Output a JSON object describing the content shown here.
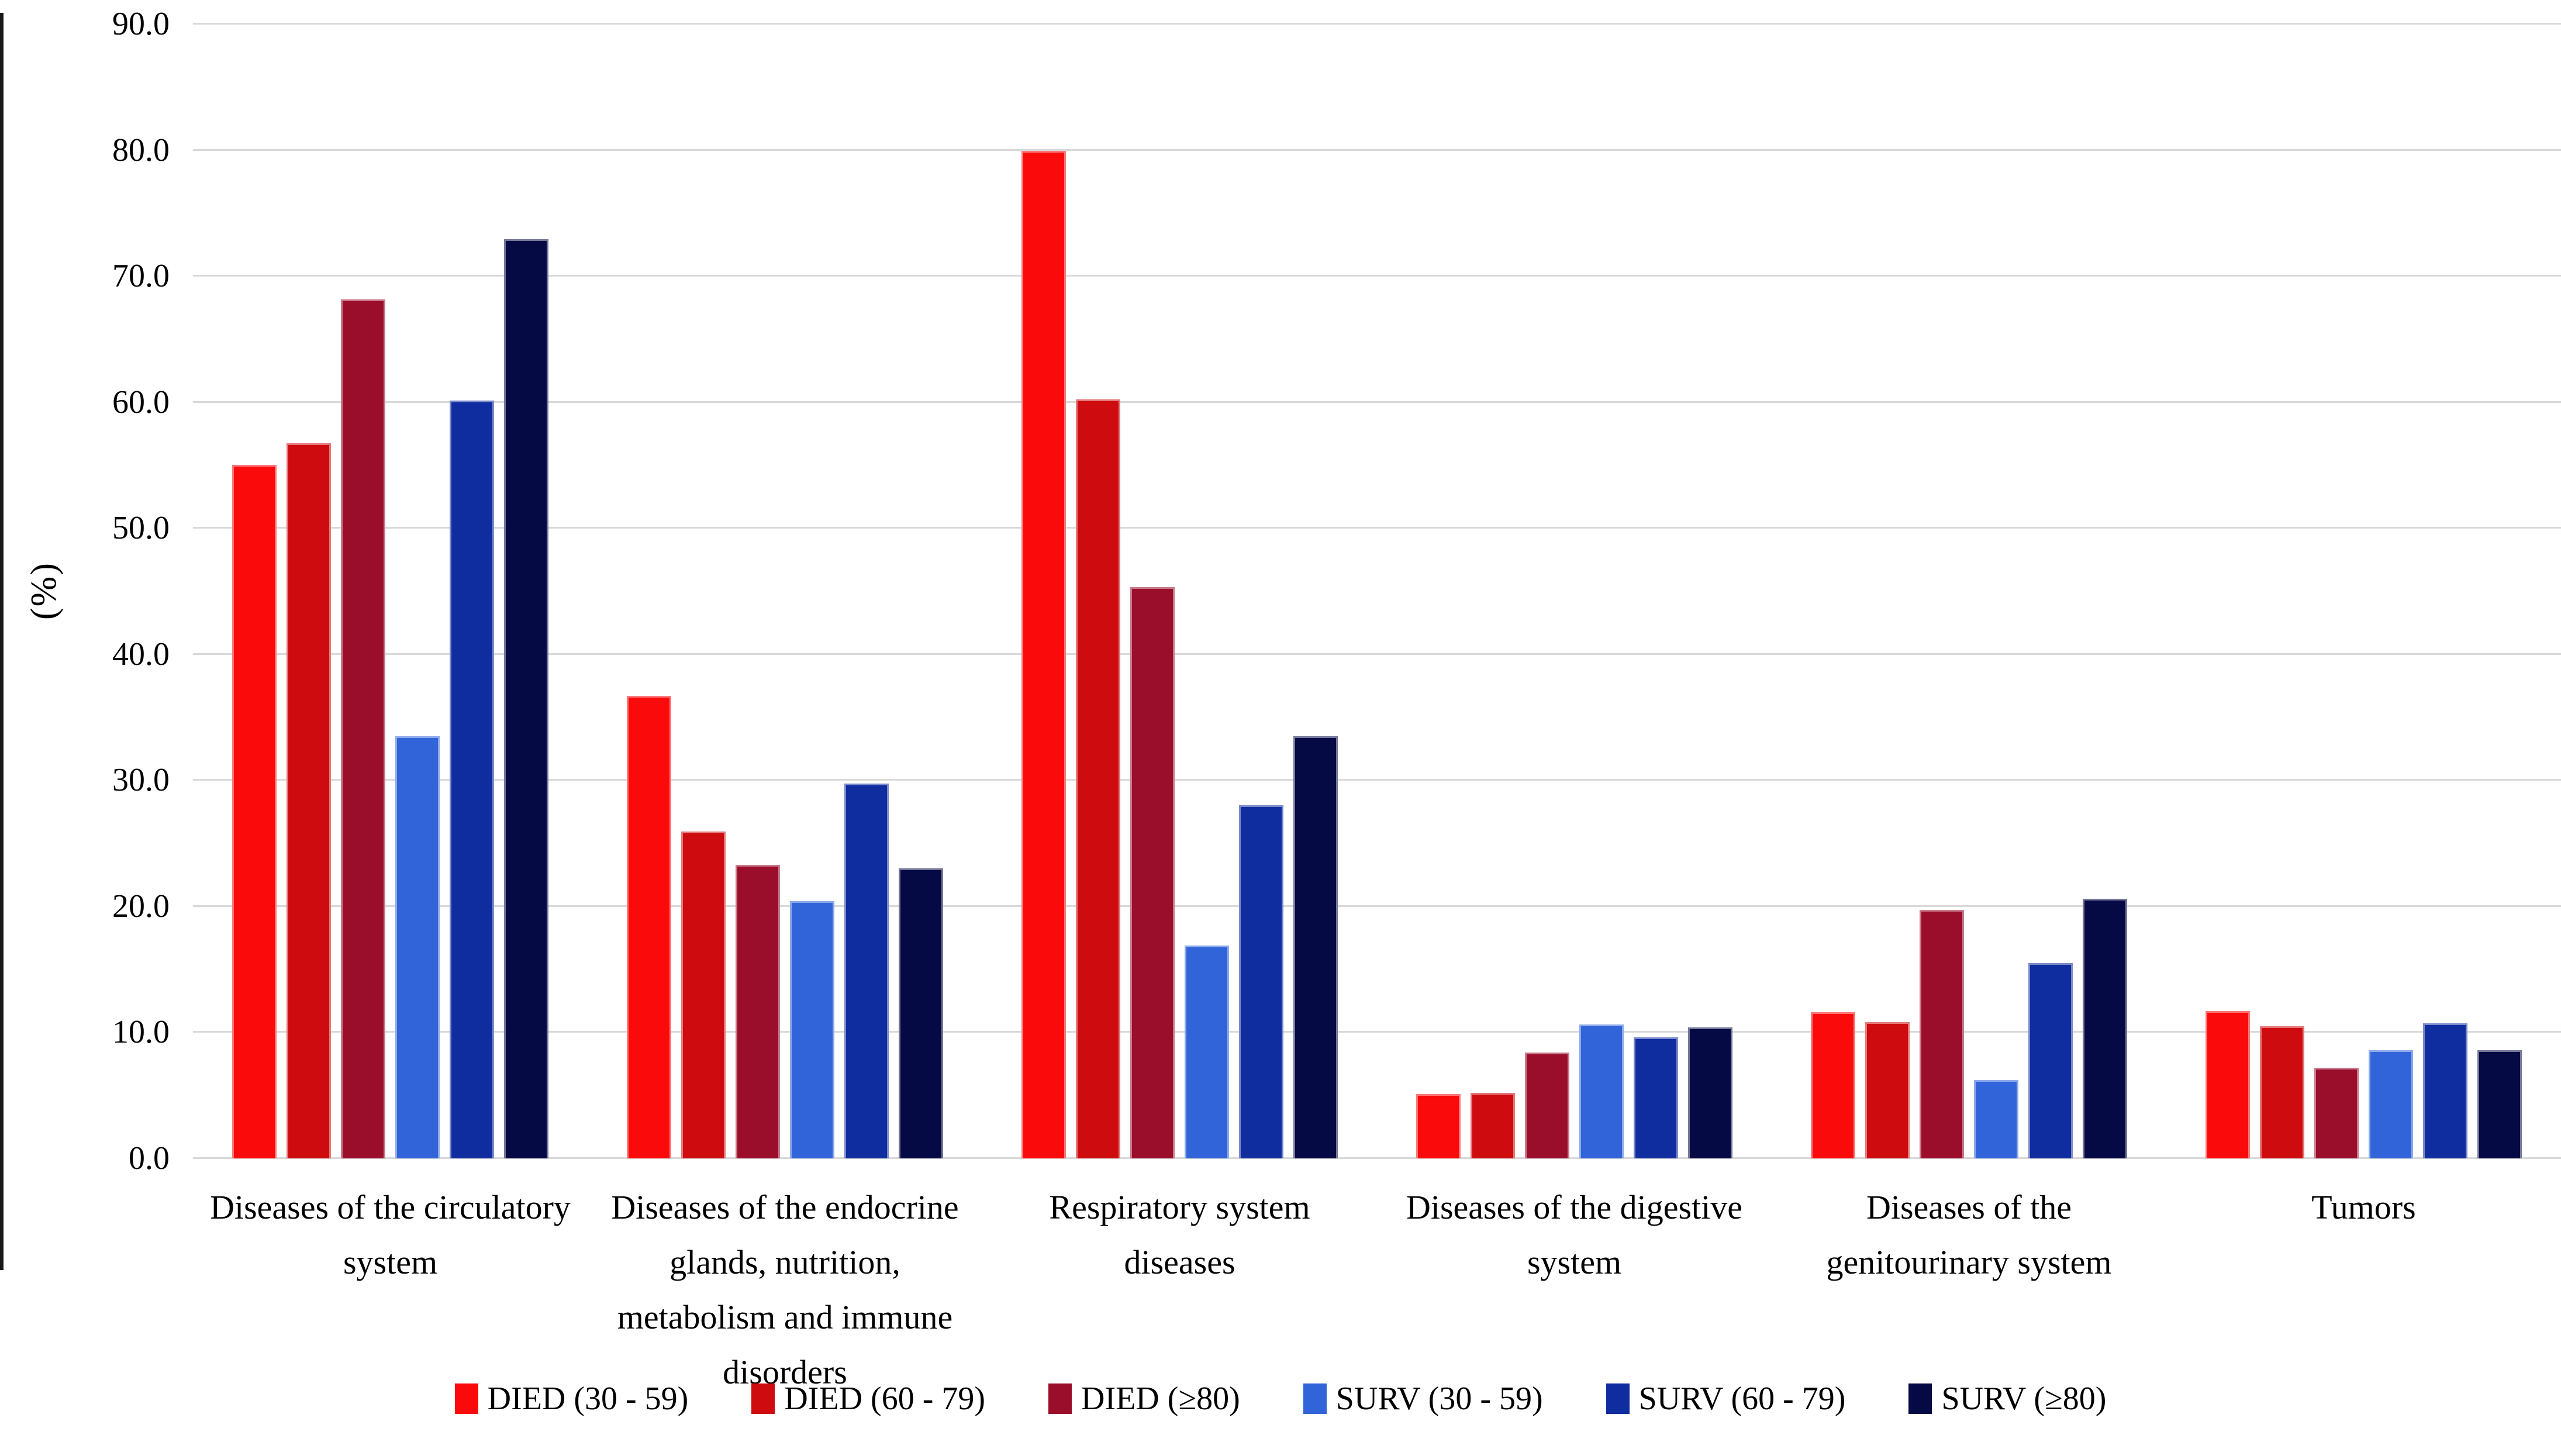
{
  "figure": {
    "y_axis_title": "(%)"
  },
  "chart_data": {
    "type": "bar",
    "title": "",
    "xlabel": "",
    "ylabel": "(%)",
    "ylim": [
      0,
      90
    ],
    "ytick_step": 10,
    "y_tick_labels": [
      "0.0",
      "10.0",
      "20.0",
      "30.0",
      "40.0",
      "50.0",
      "60.0",
      "70.0",
      "80.0",
      "90.0"
    ],
    "grid": true,
    "gridline_color": "#d9d9d9",
    "legend_position": "bottom",
    "background_color": "#ffffff",
    "categories": [
      "Diseases of the circulatory system",
      "Diseases of the endocrine glands, nutrition, metabolism and immune disorders",
      "Respiratory system diseases",
      "Diseases of the digestive system",
      "Diseases of the genitourinary system",
      "Tumors"
    ],
    "series": [
      {
        "name": "DIED (30 - 59)",
        "color": "#fb0a0b",
        "values": [
          55.0,
          36.7,
          79.9,
          5.1,
          11.6,
          11.7
        ]
      },
      {
        "name": "DIED (60 - 79)",
        "color": "#ce0b0e",
        "values": [
          56.7,
          25.9,
          60.2,
          5.2,
          10.8,
          10.5
        ]
      },
      {
        "name": "DIED (≥80)",
        "color": "#9b0e2b",
        "values": [
          68.1,
          23.3,
          45.3,
          8.4,
          19.7,
          7.2
        ]
      },
      {
        "name": "SURV (30 - 59)",
        "color": "#3264d9",
        "values": [
          33.5,
          20.4,
          16.9,
          10.6,
          6.2,
          8.6
        ]
      },
      {
        "name": "SURV (60 - 79)",
        "color": "#0f2d9f",
        "values": [
          60.1,
          29.7,
          28.0,
          9.6,
          15.5,
          10.7
        ]
      },
      {
        "name": "SURV (≥80)",
        "color": "#050a45",
        "values": [
          72.9,
          23.0,
          33.5,
          10.4,
          20.6,
          8.6
        ]
      }
    ]
  }
}
